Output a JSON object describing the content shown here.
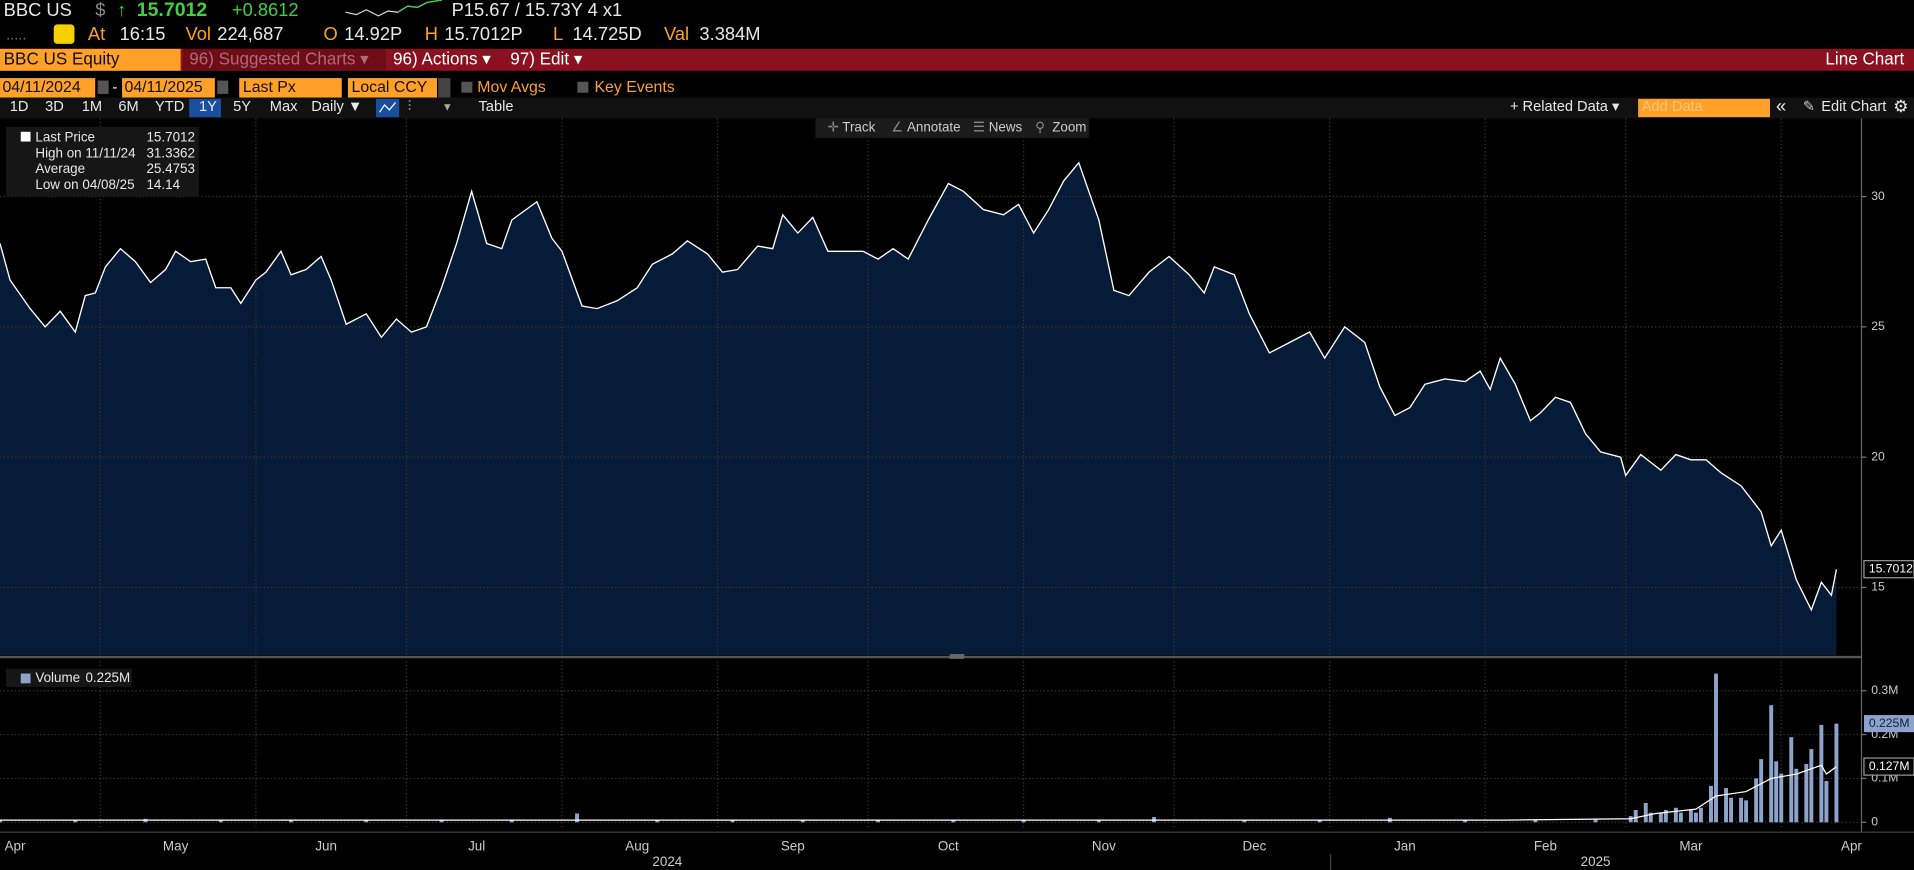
{
  "header": {
    "quote": {
      "ticker": "BBC US",
      "currency": "$",
      "arrow": "↑",
      "last": "15.7012",
      "change": "+0.8612",
      "bid_ask": "P15.67 / 15.73Y 4 x1"
    },
    "stats": [
      {
        "label": "At",
        "value": "16:15"
      },
      {
        "label": "Vol",
        "value": "224,687"
      },
      {
        "label": "O",
        "value": "14.92P"
      },
      {
        "label": "H",
        "value": "15.7012P"
      },
      {
        "label": "L",
        "value": "14.725D"
      },
      {
        "label": "Val",
        "value": "3.384M"
      }
    ]
  },
  "menu": {
    "security": "BBC US Equity",
    "suggested": "96) Suggested Charts ▾",
    "actions": "96) Actions ▾",
    "edit": "97) Edit ▾",
    "chart_kind": "Line Chart"
  },
  "settings": {
    "start": "04/11/2024",
    "dash": "-",
    "end": "04/11/2025",
    "field": "Last Px",
    "currency": "Local CCY",
    "mov_avgs": "Mov Avgs",
    "key_events": "Key Events"
  },
  "periods": {
    "buttons": [
      "1D",
      "3D",
      "1M",
      "6M",
      "YTD",
      "1Y",
      "5Y",
      "Max"
    ],
    "selected": "1Y",
    "frequency": "Daily ▼",
    "table": "Table",
    "related": "+ Related Data ▾",
    "add_data": "Add Data",
    "collapse": "«",
    "edit_chart": "Edit Chart"
  },
  "tools": [
    "Track",
    "Annotate",
    "News",
    "Zoom"
  ],
  "chart_data": [
    {
      "type": "area",
      "legend": [
        {
          "label": "Last Price",
          "value": "15.7012"
        },
        {
          "label": "High on 11/11/24",
          "value": "31.3362"
        },
        {
          "label": "Average",
          "value": "25.4753"
        },
        {
          "label": "Low on 04/08/25",
          "value": "14.14"
        }
      ],
      "xlim": [
        0,
        371
      ],
      "xgrid": [
        20,
        51,
        81,
        112,
        143,
        173,
        204,
        234,
        265,
        296,
        324,
        355
      ],
      "xticks": [
        {
          "value": 3,
          "label": "Apr"
        },
        {
          "value": 35,
          "label": "May"
        },
        {
          "value": 65,
          "label": "Jun"
        },
        {
          "value": 95,
          "label": "Jul"
        },
        {
          "value": 127,
          "label": "Aug"
        },
        {
          "value": 158,
          "label": "Sep"
        },
        {
          "value": 189,
          "label": "Oct"
        },
        {
          "value": 220,
          "label": "Nov"
        },
        {
          "value": 250,
          "label": "Dec"
        },
        {
          "value": 280,
          "label": "Jan"
        },
        {
          "value": 308,
          "label": "Feb"
        },
        {
          "value": 337,
          "label": "Mar"
        },
        {
          "value": 369,
          "label": "Apr"
        }
      ],
      "year_ticks": [
        {
          "value": 133,
          "label": "2024"
        },
        {
          "value": 318,
          "label": "2025"
        }
      ],
      "ylim": [
        12.4,
        33
      ],
      "yticks": [
        15,
        20,
        25,
        30
      ],
      "grid": true,
      "series": [
        {
          "name": "Last Price",
          "color": "#ffffff",
          "fill": "#061b38",
          "x": [
            0,
            2,
            6,
            9,
            12,
            15,
            17,
            19,
            21,
            24,
            27,
            30,
            33,
            35,
            38,
            41,
            43,
            46,
            48,
            51,
            53,
            56,
            58,
            61,
            64,
            66,
            69,
            73,
            76,
            79,
            82,
            85,
            88,
            91,
            94,
            97,
            100,
            102,
            107,
            110,
            112,
            116,
            119,
            123,
            127,
            130,
            134,
            137,
            141,
            144,
            147,
            151,
            154,
            156,
            159,
            162,
            165,
            168,
            172,
            175,
            178,
            181,
            185,
            189,
            192,
            196,
            200,
            203,
            206,
            209,
            212,
            215,
            219,
            222,
            225,
            229,
            233,
            237,
            240,
            242,
            246,
            249,
            253,
            257,
            261,
            264,
            268,
            272,
            275,
            278,
            281,
            284,
            288,
            292,
            295,
            297,
            299,
            302,
            305,
            307,
            310,
            313,
            316,
            319,
            323,
            324,
            327,
            331,
            334,
            337,
            340,
            343,
            347,
            351,
            353,
            355,
            358,
            361,
            363,
            365,
            366
          ],
          "values": [
            28.2,
            26.8,
            25.7,
            25.0,
            25.6,
            24.8,
            26.2,
            26.3,
            27.3,
            28.0,
            27.5,
            26.7,
            27.2,
            27.9,
            27.5,
            27.6,
            26.5,
            26.5,
            25.9,
            26.8,
            27.1,
            27.9,
            27.0,
            27.2,
            27.7,
            26.8,
            25.1,
            25.5,
            24.6,
            25.3,
            24.8,
            25.0,
            26.5,
            28.2,
            30.2,
            28.2,
            28.0,
            29.1,
            29.8,
            28.4,
            27.9,
            25.8,
            25.7,
            26.0,
            26.5,
            27.4,
            27.8,
            28.3,
            27.8,
            27.1,
            27.2,
            28.1,
            28.0,
            29.3,
            28.6,
            29.2,
            27.9,
            27.9,
            27.9,
            27.6,
            28.0,
            27.6,
            29.1,
            30.5,
            30.2,
            29.5,
            29.3,
            29.7,
            28.6,
            29.5,
            30.6,
            31.3,
            29.1,
            26.4,
            26.2,
            27.1,
            27.7,
            27.0,
            26.3,
            27.3,
            27.0,
            25.5,
            24.0,
            24.4,
            24.8,
            23.8,
            25.0,
            24.4,
            22.7,
            21.6,
            21.9,
            22.8,
            23.0,
            22.9,
            23.3,
            22.6,
            23.8,
            22.8,
            21.4,
            21.7,
            22.3,
            22.1,
            20.9,
            20.2,
            20.0,
            19.3,
            20.1,
            19.5,
            20.1,
            19.9,
            19.9,
            19.4,
            18.9,
            17.9,
            16.6,
            17.2,
            15.3,
            14.14,
            15.2,
            14.7,
            15.7012
          ]
        }
      ]
    },
    {
      "type": "bar",
      "xlim": [
        0,
        371
      ],
      "ylim": [
        -0.017,
        0.367
      ],
      "yticks": [
        0,
        {
          "value": 0.1,
          "label": "0.1M"
        },
        {
          "value": 0.2,
          "label": "0.2M"
        },
        {
          "value": 0.3,
          "label": "0.3M"
        }
      ],
      "grid": true,
      "series": [
        {
          "name": "Volume",
          "legend_value": "0.225M",
          "last_label": "0.225M",
          "color": "#8ea3cc",
          "x": [
            0,
            15,
            29,
            44,
            58,
            73,
            88,
            102,
            115,
            131,
            146,
            160,
            175,
            190,
            204,
            219,
            230,
            248,
            263,
            277,
            292,
            306,
            318,
            325,
            326,
            328,
            329,
            331,
            332,
            334,
            335,
            337,
            338,
            339,
            341,
            342,
            344,
            345,
            347,
            348,
            350,
            351,
            353,
            354,
            355,
            357,
            358,
            360,
            361,
            363,
            364,
            366
          ],
          "values": [
            0.005,
            0.005,
            0.008,
            0.005,
            0.005,
            0.006,
            0.005,
            0.005,
            0.02,
            0.005,
            0.005,
            0.005,
            0.005,
            0.004,
            0.005,
            0.005,
            0.012,
            0.005,
            0.004,
            0.01,
            0.005,
            0.006,
            0.006,
            0.014,
            0.028,
            0.044,
            0.022,
            0.022,
            0.028,
            0.033,
            0.022,
            0.028,
            0.022,
            0.033,
            0.083,
            0.339,
            0.078,
            0.056,
            0.056,
            0.05,
            0.1,
            0.144,
            0.267,
            0.139,
            0.111,
            0.194,
            0.122,
            0.133,
            0.167,
            0.222,
            0.094,
            0.225
          ]
        },
        {
          "type": "line",
          "last_label": "0.127M",
          "color": "#ffffff",
          "x": [
            0,
            100,
            200,
            300,
            325,
            330,
            338,
            342,
            348,
            353,
            358,
            363,
            364,
            366
          ],
          "values": [
            0.005,
            0.005,
            0.005,
            0.005,
            0.008,
            0.02,
            0.03,
            0.06,
            0.07,
            0.1,
            0.11,
            0.13,
            0.11,
            0.127
          ]
        }
      ]
    }
  ]
}
